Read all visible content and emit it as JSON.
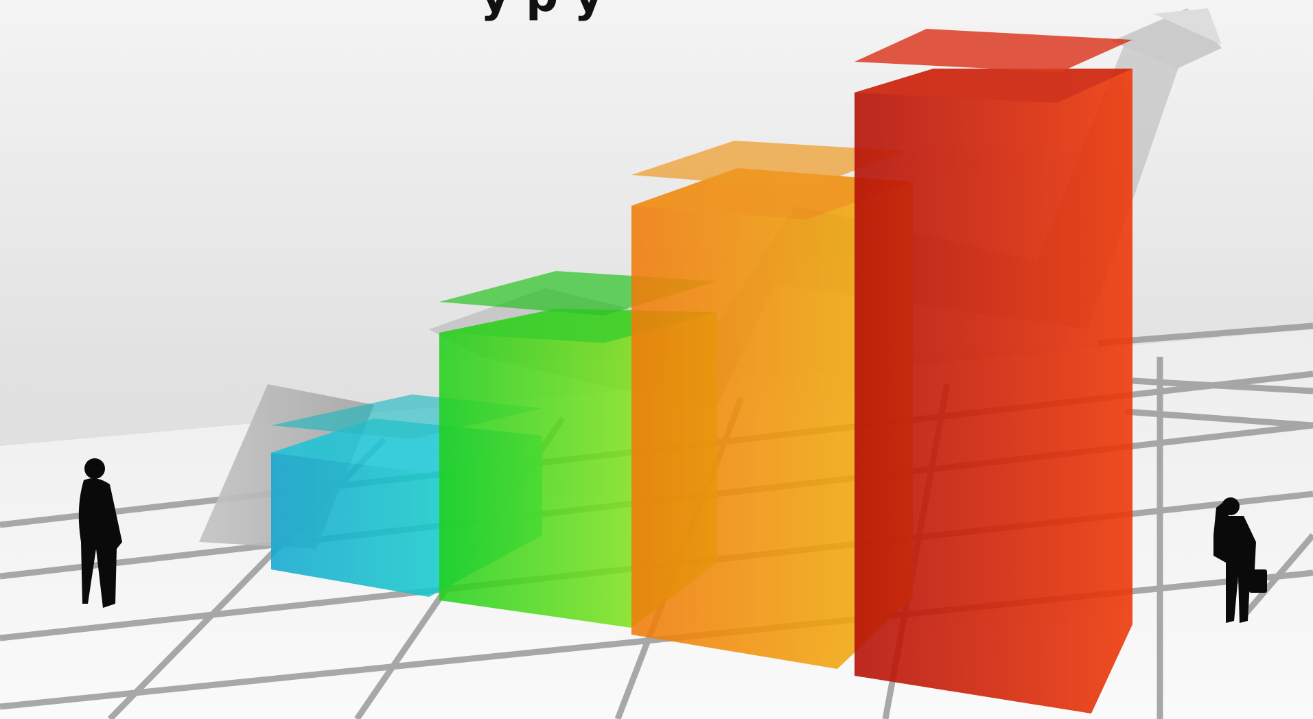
{
  "title_fragment": "y   p     y",
  "bars": [
    {
      "name": "bar-1",
      "level": 1,
      "color": "#10c8d4"
    },
    {
      "name": "bar-2",
      "level": 2,
      "color": "#2ee016"
    },
    {
      "name": "bar-3",
      "level": 3,
      "color": "#f08a0a"
    },
    {
      "name": "bar-4",
      "level": 4,
      "color": "#d8260a"
    }
  ],
  "figures": [
    "man-looking-up-icon",
    "man-with-briefcase-icon"
  ],
  "arrow": "up-trend-arrow-icon",
  "colors": {
    "background": "#e4e4e4",
    "floor": "#f2f2f2",
    "grid": "#9a9a9a",
    "arrow": "#b8b8b8"
  }
}
